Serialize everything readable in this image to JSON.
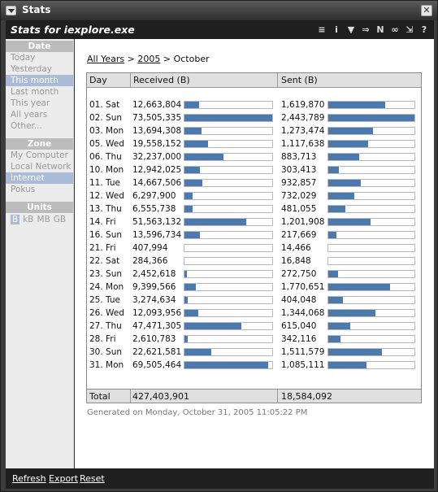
{
  "window": {
    "title": "Stats",
    "close_label": "✕"
  },
  "header": {
    "title": "Stats for iexplore.exe"
  },
  "toolbar": [
    {
      "name": "format-icon",
      "glyph": "≡"
    },
    {
      "name": "info-icon",
      "glyph": "i"
    },
    {
      "name": "filter-icon",
      "glyph": "▼"
    },
    {
      "name": "arrow-icon",
      "glyph": "⇒"
    },
    {
      "name": "n-icon",
      "glyph": "N"
    },
    {
      "name": "link-icon",
      "glyph": "∞"
    },
    {
      "name": "export-icon",
      "glyph": "⇲"
    },
    {
      "name": "help-icon",
      "glyph": "?"
    }
  ],
  "sidebar": {
    "date_header": "Date",
    "date_items": [
      "Today",
      "Yesterday",
      "This month",
      "Last month",
      "This year",
      "All years",
      "Other..."
    ],
    "date_selected": 2,
    "zone_header": "Zone",
    "zone_items": [
      "My Computer",
      "Local Network",
      "Internet",
      "Pokus"
    ],
    "zone_selected": 2,
    "units_header": "Units",
    "units_items": [
      "B",
      "kB",
      "MB",
      "GB"
    ],
    "units_selected": 0
  },
  "breadcrumb": {
    "all_years": "All Years",
    "sep1": " > ",
    "year": "2005",
    "sep2": " > ",
    "month": "October"
  },
  "table": {
    "headers": {
      "day": "Day",
      "received": "Received (B)",
      "sent": "Sent (B)"
    },
    "rows": [
      {
        "day": "01. Sat",
        "received": "12,663,804",
        "sent": "1,619,870",
        "rfrac": 0.17,
        "sfrac": 0.66
      },
      {
        "day": "02. Sun",
        "received": "73,505,335",
        "sent": "2,443,789",
        "rfrac": 1.0,
        "sfrac": 1.0
      },
      {
        "day": "03. Mon",
        "received": "13,694,308",
        "sent": "1,273,474",
        "rfrac": 0.19,
        "sfrac": 0.52
      },
      {
        "day": "05. Wed",
        "received": "19,558,152",
        "sent": "1,117,638",
        "rfrac": 0.27,
        "sfrac": 0.46
      },
      {
        "day": "06. Thu",
        "received": "32,237,000",
        "sent": "883,713",
        "rfrac": 0.44,
        "sfrac": 0.36
      },
      {
        "day": "10. Mon",
        "received": "12,942,025",
        "sent": "303,413",
        "rfrac": 0.18,
        "sfrac": 0.12
      },
      {
        "day": "11. Tue",
        "received": "14,667,506",
        "sent": "932,857",
        "rfrac": 0.2,
        "sfrac": 0.38
      },
      {
        "day": "12. Wed",
        "received": "6,297,900",
        "sent": "732,029",
        "rfrac": 0.09,
        "sfrac": 0.3
      },
      {
        "day": "13. Thu",
        "received": "6,555,738",
        "sent": "481,055",
        "rfrac": 0.09,
        "sfrac": 0.2
      },
      {
        "day": "14. Fri",
        "received": "51,563,132",
        "sent": "1,201,908",
        "rfrac": 0.7,
        "sfrac": 0.49
      },
      {
        "day": "16. Sun",
        "received": "13,596,734",
        "sent": "217,669",
        "rfrac": 0.18,
        "sfrac": 0.09
      },
      {
        "day": "21. Fri",
        "received": "407,994",
        "sent": "14,466",
        "rfrac": 0.0,
        "sfrac": 0.0
      },
      {
        "day": "22. Sat",
        "received": "284,366",
        "sent": "16,848",
        "rfrac": 0.0,
        "sfrac": 0.0
      },
      {
        "day": "23. Sun",
        "received": "2,452,618",
        "sent": "272,750",
        "rfrac": 0.03,
        "sfrac": 0.11
      },
      {
        "day": "24. Mon",
        "received": "9,399,566",
        "sent": "1,770,651",
        "rfrac": 0.13,
        "sfrac": 0.72
      },
      {
        "day": "25. Tue",
        "received": "3,274,634",
        "sent": "404,048",
        "rfrac": 0.04,
        "sfrac": 0.17
      },
      {
        "day": "26. Wed",
        "received": "12,093,956",
        "sent": "1,344,068",
        "rfrac": 0.16,
        "sfrac": 0.55
      },
      {
        "day": "27. Thu",
        "received": "47,471,305",
        "sent": "615,040",
        "rfrac": 0.65,
        "sfrac": 0.25
      },
      {
        "day": "28. Fri",
        "received": "2,610,783",
        "sent": "342,116",
        "rfrac": 0.04,
        "sfrac": 0.14
      },
      {
        "day": "30. Sun",
        "received": "22,621,581",
        "sent": "1,511,579",
        "rfrac": 0.31,
        "sfrac": 0.62
      },
      {
        "day": "31. Mon",
        "received": "69,505,464",
        "sent": "1,085,111",
        "rfrac": 0.95,
        "sfrac": 0.44
      }
    ],
    "total": {
      "label": "Total",
      "received": "427,403,901",
      "sent": "18,584,092"
    },
    "bar_color": "#4a7ab0"
  },
  "generated": "Generated on Monday, October 31, 2005 11:05:22 PM",
  "footer": {
    "refresh": "Refresh",
    "export": "Export",
    "reset": "Reset"
  }
}
